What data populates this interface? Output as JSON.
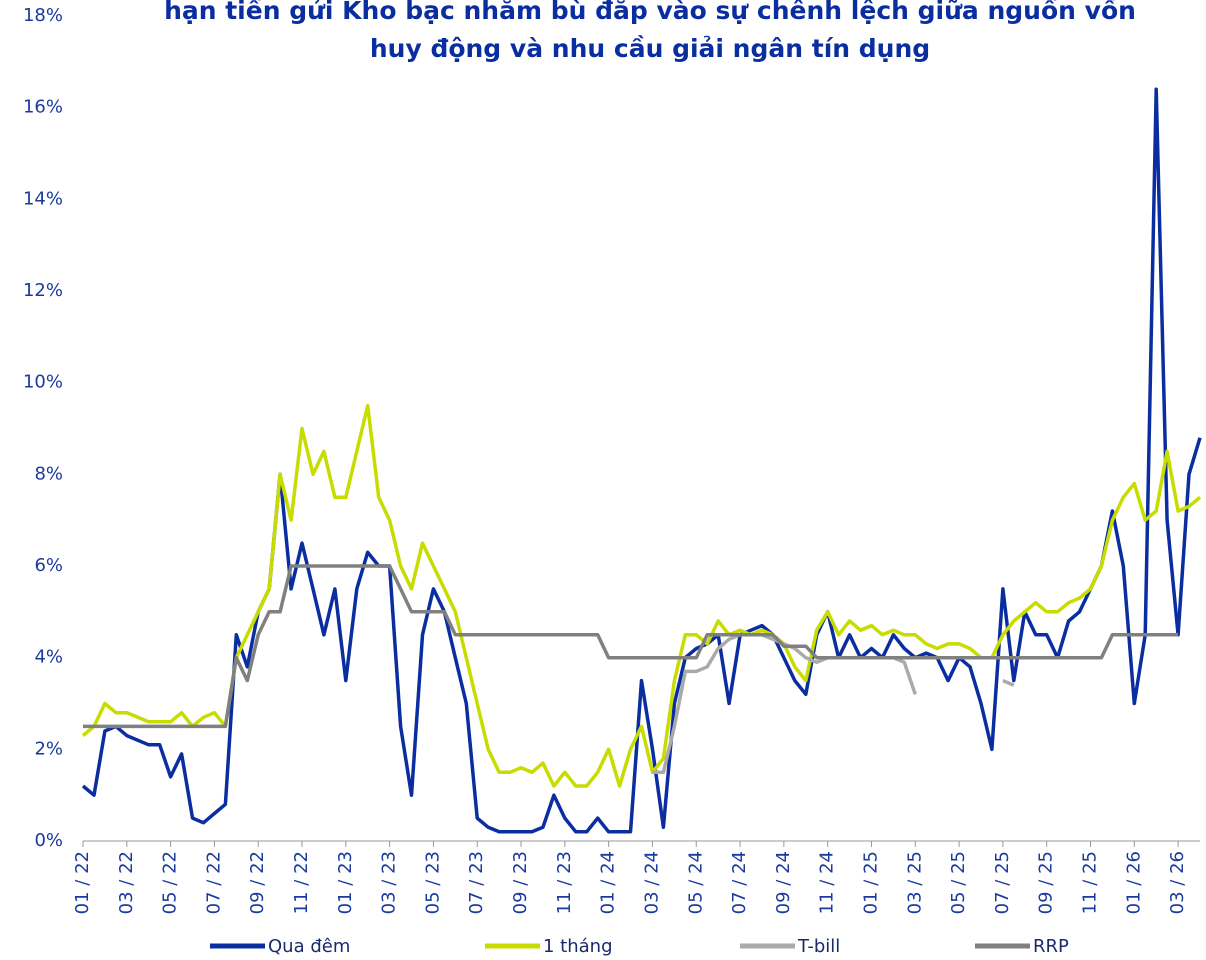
{
  "chart_data": {
    "type": "line",
    "title": [
      "hạn tiền gửi Kho bạc nhằm bù đắp vào sự chênh lệch giữa nguồn vốn",
      "huy động và nhu cầu giải ngân tín dụng"
    ],
    "x": [
      0,
      0.5,
      1,
      1.5,
      2,
      2.5,
      3,
      3.5,
      4,
      4.5,
      5,
      5.5,
      6,
      6.5,
      7,
      7.5,
      8,
      8.5,
      9,
      9.5,
      10,
      10.5,
      11,
      11.5,
      12,
      12.5,
      13,
      13.5,
      14,
      14.5,
      15,
      15.5,
      16,
      16.5,
      17,
      17.5,
      18,
      18.5,
      19,
      19.5,
      20,
      20.5,
      21,
      21.5,
      22,
      22.5,
      23,
      23.5,
      24,
      24.5,
      25,
      25.5,
      26,
      26.5,
      27,
      27.5,
      28,
      28.5,
      29,
      29.5,
      30,
      30.5,
      31,
      31.5,
      32,
      32.5,
      33,
      33.5,
      34,
      34.5,
      35,
      35.5,
      36,
      36.5,
      37,
      37.5,
      38,
      38.5,
      39,
      39.5,
      40,
      40.5,
      41,
      41.5,
      42,
      42.5,
      43,
      43.5,
      44,
      44.5,
      45,
      45.5,
      46,
      46.5,
      47,
      47.5,
      48,
      48.5,
      49,
      49.5,
      50,
      50.5,
      51
    ],
    "xlim": [
      0,
      51
    ],
    "xticks": [
      {
        "value": 0,
        "label": "01 / 22"
      },
      {
        "value": 2,
        "label": "03 / 22"
      },
      {
        "value": 4,
        "label": "05 / 22"
      },
      {
        "value": 6,
        "label": "07 / 22"
      },
      {
        "value": 8,
        "label": "09 / 22"
      },
      {
        "value": 10,
        "label": "11 / 22"
      },
      {
        "value": 12,
        "label": "01 / 23"
      },
      {
        "value": 14,
        "label": "03 / 23"
      },
      {
        "value": 16,
        "label": "05 / 23"
      },
      {
        "value": 18,
        "label": "07 / 23"
      },
      {
        "value": 20,
        "label": "09 / 23"
      },
      {
        "value": 22,
        "label": "11 / 23"
      },
      {
        "value": 24,
        "label": "01 / 24"
      },
      {
        "value": 26,
        "label": "03 / 24"
      },
      {
        "value": 28,
        "label": "05 / 24"
      },
      {
        "value": 30,
        "label": "07 / 24"
      },
      {
        "value": 32,
        "label": "09 / 24"
      },
      {
        "value": 34,
        "label": "11 / 24"
      },
      {
        "value": 36,
        "label": "01 / 25"
      },
      {
        "value": 38,
        "label": "03 / 25"
      },
      {
        "value": 40,
        "label": "05 / 25"
      },
      {
        "value": 42,
        "label": "07 / 25"
      },
      {
        "value": 44,
        "label": "09 / 25"
      },
      {
        "value": 46,
        "label": "11 / 25"
      },
      {
        "value": 48,
        "label": "01 / 26"
      },
      {
        "value": 50,
        "label": "03 / 26"
      }
    ],
    "ylim": [
      0,
      18
    ],
    "yticks": [
      {
        "value": 0,
        "label": "0%"
      },
      {
        "value": 2,
        "label": "2%"
      },
      {
        "value": 4,
        "label": "4%"
      },
      {
        "value": 6,
        "label": "6%"
      },
      {
        "value": 8,
        "label": "8%"
      },
      {
        "value": 10,
        "label": "10%"
      },
      {
        "value": 12,
        "label": "12%"
      },
      {
        "value": 14,
        "label": "14%"
      },
      {
        "value": 16,
        "label": "16%"
      },
      {
        "value": 18,
        "label": "18%"
      }
    ],
    "series": [
      {
        "name": "Qua đêm",
        "color": "#0a2ea0",
        "values": [
          1.2,
          1.0,
          2.4,
          2.5,
          2.3,
          2.2,
          2.1,
          2.1,
          1.4,
          1.9,
          0.5,
          0.4,
          0.6,
          0.8,
          4.5,
          3.8,
          5.0,
          5.5,
          8.0,
          5.5,
          6.5,
          5.5,
          4.5,
          5.5,
          3.5,
          5.5,
          6.3,
          6.0,
          6.0,
          2.5,
          1.0,
          4.5,
          5.5,
          5.0,
          4.0,
          3.0,
          0.5,
          0.3,
          0.2,
          0.2,
          0.2,
          0.2,
          0.3,
          1.0,
          0.5,
          0.2,
          0.2,
          0.5,
          0.2,
          0.2,
          0.2,
          3.5,
          2.0,
          0.3,
          3.0,
          4.0,
          4.2,
          4.3,
          4.5,
          3.0,
          4.5,
          4.6,
          4.7,
          4.5,
          4.0,
          3.5,
          3.2,
          4.5,
          5.0,
          4.0,
          4.5,
          4.0,
          4.2,
          4.0,
          4.5,
          4.2,
          4.0,
          4.1,
          4.0,
          3.5,
          4.0,
          3.8,
          3.0,
          2.0,
          5.5,
          3.5,
          5.0,
          4.5,
          4.5,
          4.0,
          4.8,
          5.0,
          5.5,
          6.0,
          7.2,
          6.0,
          3.0,
          4.5,
          16.4,
          7.0,
          4.5,
          8.0,
          8.8
        ]
      },
      {
        "name": "1 tháng",
        "color": "#c8dc00",
        "values": [
          2.3,
          2.5,
          3.0,
          2.8,
          2.8,
          2.7,
          2.6,
          2.6,
          2.6,
          2.8,
          2.5,
          2.7,
          2.8,
          2.5,
          4.0,
          4.5,
          5.0,
          5.5,
          8.0,
          7.0,
          9.0,
          8.0,
          8.5,
          7.5,
          7.5,
          8.5,
          9.5,
          7.5,
          7.0,
          6.0,
          5.5,
          6.5,
          6.0,
          5.5,
          5.0,
          4.0,
          3.0,
          2.0,
          1.5,
          1.5,
          1.6,
          1.5,
          1.7,
          1.2,
          1.5,
          1.2,
          1.2,
          1.5,
          2.0,
          1.2,
          2.0,
          2.5,
          1.5,
          1.8,
          3.5,
          4.5,
          4.5,
          4.3,
          4.8,
          4.5,
          4.6,
          4.5,
          4.6,
          4.5,
          4.3,
          3.8,
          3.5,
          4.6,
          5.0,
          4.5,
          4.8,
          4.6,
          4.7,
          4.5,
          4.6,
          4.5,
          4.5,
          4.3,
          4.2,
          4.3,
          4.3,
          4.2,
          4.0,
          4.0,
          4.5,
          4.8,
          5.0,
          5.2,
          5.0,
          5.0,
          5.2,
          5.3,
          5.5,
          6.0,
          7.0,
          7.5,
          7.8,
          7.0,
          7.2,
          8.5,
          7.2,
          7.3,
          7.5
        ]
      },
      {
        "name": "T-bill",
        "color": "#aaaaaa",
        "values": [
          null,
          null,
          null,
          null,
          null,
          null,
          null,
          null,
          null,
          null,
          null,
          null,
          null,
          null,
          null,
          null,
          null,
          null,
          null,
          null,
          null,
          null,
          null,
          null,
          null,
          null,
          null,
          null,
          null,
          null,
          null,
          null,
          null,
          null,
          null,
          null,
          null,
          null,
          null,
          null,
          null,
          null,
          null,
          null,
          null,
          null,
          null,
          null,
          null,
          null,
          null,
          null,
          1.5,
          1.5,
          2.5,
          3.7,
          3.7,
          3.8,
          4.2,
          4.4,
          4.5,
          4.5,
          4.5,
          4.4,
          4.3,
          4.2,
          4.0,
          3.9,
          4.0,
          4.0,
          4.0,
          4.0,
          4.0,
          4.0,
          4.0,
          3.9,
          3.2,
          null,
          null,
          null,
          null,
          null,
          null,
          null,
          3.5,
          3.4,
          null,
          null,
          null,
          null,
          null,
          null,
          null,
          null,
          null,
          null,
          null,
          null,
          null,
          null,
          null,
          null,
          null
        ]
      },
      {
        "name": "RRP",
        "color": "#808080",
        "values": [
          2.5,
          2.5,
          2.5,
          2.5,
          2.5,
          2.5,
          2.5,
          2.5,
          2.5,
          2.5,
          2.5,
          2.5,
          2.5,
          2.5,
          4.0,
          3.5,
          4.5,
          5.0,
          5.0,
          6.0,
          6.0,
          6.0,
          6.0,
          6.0,
          6.0,
          6.0,
          6.0,
          6.0,
          6.0,
          5.5,
          5.0,
          5.0,
          5.0,
          5.0,
          4.5,
          4.5,
          4.5,
          4.5,
          4.5,
          4.5,
          4.5,
          4.5,
          4.5,
          4.5,
          4.5,
          4.5,
          4.5,
          4.5,
          4.0,
          4.0,
          4.0,
          4.0,
          4.0,
          4.0,
          4.0,
          4.0,
          4.0,
          4.5,
          4.5,
          4.5,
          4.5,
          4.5,
          4.5,
          4.5,
          4.25,
          4.25,
          4.25,
          4.0,
          4.0,
          4.0,
          4.0,
          4.0,
          4.0,
          4.0,
          4.0,
          4.0,
          4.0,
          4.0,
          4.0,
          4.0,
          4.0,
          4.0,
          4.0,
          4.0,
          4.0,
          4.0,
          4.0,
          4.0,
          4.0,
          4.0,
          4.0,
          4.0,
          4.0,
          4.0,
          4.5,
          4.5,
          4.5,
          4.5,
          4.5,
          4.5,
          4.5,
          null,
          null
        ]
      }
    ]
  }
}
